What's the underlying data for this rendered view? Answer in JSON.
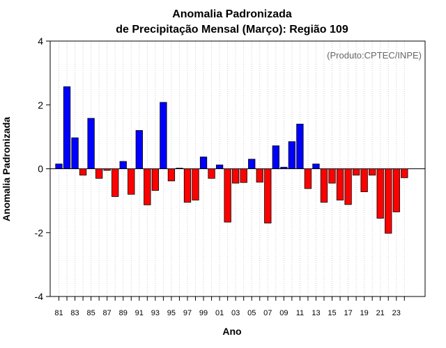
{
  "chart_data": {
    "type": "bar",
    "title": "Anomalia Padronizada",
    "subtitle": "de Precipitação Mensal (Março): Região 109",
    "xlabel": "Ano",
    "ylabel": "Anomalia Padronizada",
    "annotation": "(Produto:CPTEC/INPE)",
    "ylim": [
      -4,
      4
    ],
    "yticks": [
      -4,
      -2,
      0,
      2,
      4
    ],
    "ytick_labels": [
      "-4",
      "-2",
      "0",
      "2",
      "4"
    ],
    "grid": "vertical dotted",
    "categories": [
      "81",
      "82",
      "83",
      "84",
      "85",
      "86",
      "87",
      "88",
      "89",
      "90",
      "91",
      "92",
      "93",
      "94",
      "95",
      "96",
      "97",
      "98",
      "99",
      "00",
      "01",
      "02",
      "03",
      "04",
      "05",
      "06",
      "07",
      "08",
      "09",
      "10",
      "11",
      "12",
      "13",
      "14",
      "15",
      "16",
      "17",
      "18",
      "19",
      "20",
      "21",
      "22",
      "23",
      "24"
    ],
    "xtick_labels": [
      "81",
      "83",
      "85",
      "87",
      "89",
      "91",
      "93",
      "95",
      "97",
      "99",
      "01",
      "03",
      "05",
      "07",
      "09",
      "11",
      "13",
      "15",
      "17",
      "19",
      "21",
      "23"
    ],
    "values": [
      0.15,
      2.57,
      0.97,
      -0.2,
      1.58,
      -0.3,
      -0.05,
      -0.87,
      0.23,
      -0.8,
      1.2,
      -1.13,
      -0.68,
      2.08,
      -0.38,
      0.02,
      -1.05,
      -0.98,
      0.37,
      -0.3,
      0.12,
      -1.67,
      -0.45,
      -0.43,
      0.3,
      -0.42,
      -1.7,
      0.72,
      0.05,
      0.85,
      1.4,
      -0.62,
      0.15,
      -1.05,
      -0.45,
      -0.98,
      -1.12,
      -0.2,
      -0.72,
      -0.2,
      -1.55,
      -2.02,
      -1.35,
      -0.28
    ],
    "colors": {
      "positive": "#0000ff",
      "negative": "#ff0000",
      "edge": "#000000",
      "grid": "#cccccc",
      "zero_line": "#000000"
    }
  }
}
